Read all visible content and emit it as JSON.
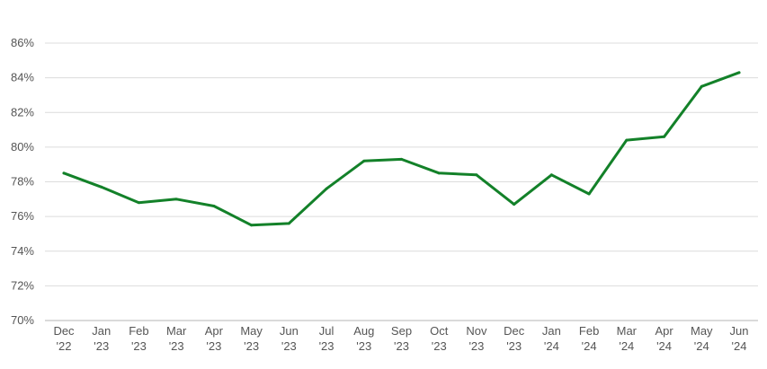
{
  "chart_data": {
    "type": "line",
    "title": "",
    "xlabel": "",
    "ylabel": "",
    "categories": [
      {
        "month": "Dec",
        "year": "'22"
      },
      {
        "month": "Jan",
        "year": "'23"
      },
      {
        "month": "Feb",
        "year": "'23"
      },
      {
        "month": "Mar",
        "year": "'23"
      },
      {
        "month": "Apr",
        "year": "'23"
      },
      {
        "month": "May",
        "year": "'23"
      },
      {
        "month": "Jun",
        "year": "'23"
      },
      {
        "month": "Jul",
        "year": "'23"
      },
      {
        "month": "Aug",
        "year": "'23"
      },
      {
        "month": "Sep",
        "year": "'23"
      },
      {
        "month": "Oct",
        "year": "'23"
      },
      {
        "month": "Nov",
        "year": "'23"
      },
      {
        "month": "Dec",
        "year": "'23"
      },
      {
        "month": "Jan",
        "year": "'24"
      },
      {
        "month": "Feb",
        "year": "'24"
      },
      {
        "month": "Mar",
        "year": "'24"
      },
      {
        "month": "Apr",
        "year": "'24"
      },
      {
        "month": "May",
        "year": "'24"
      },
      {
        "month": "Jun",
        "year": "'24"
      }
    ],
    "series": [
      {
        "values": [
          78.5,
          77.7,
          76.8,
          77.0,
          76.6,
          75.5,
          75.6,
          77.6,
          79.2,
          79.3,
          78.5,
          78.4,
          76.7,
          78.4,
          77.3,
          80.4,
          80.6,
          83.5,
          84.3
        ]
      }
    ],
    "ylim": [
      70,
      86
    ],
    "yticks": [
      70,
      72,
      74,
      76,
      78,
      80,
      82,
      84,
      86
    ],
    "ytick_labels": [
      "70%",
      "72%",
      "74%",
      "76%",
      "78%",
      "80%",
      "82%",
      "84%",
      "86%"
    ],
    "grid": true,
    "colors": {
      "line": "#138129"
    }
  }
}
